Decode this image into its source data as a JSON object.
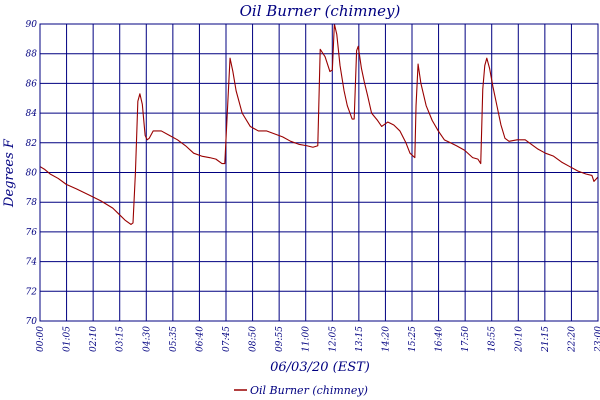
{
  "chart_data": {
    "type": "line",
    "title": "Oil Burner (chimney)",
    "xlabel": "06/03/20 (EST)",
    "ylabel": "Degrees F",
    "ylim": [
      70,
      90
    ],
    "y_ticks": [
      "70",
      "72",
      "74",
      "76",
      "78",
      "80",
      "82",
      "84",
      "86",
      "88",
      "90"
    ],
    "xlim": [
      "00:00",
      "23:00"
    ],
    "x_ticks": [
      "00:00",
      "01:05",
      "02:10",
      "03:15",
      "04:30",
      "05:35",
      "06:40",
      "07:45",
      "08:50",
      "09:55",
      "11:00",
      "12:05",
      "13:15",
      "14:20",
      "15:25",
      "16:40",
      "17:50",
      "18:55",
      "20:10",
      "21:15",
      "22:20",
      "23:00"
    ],
    "grid": true,
    "legend": "bottom-center",
    "colors": {
      "series": "#990000",
      "grid": "#000080",
      "text": "#000080"
    },
    "series": [
      {
        "name": "Oil Burner (chimney)",
        "points": [
          [
            "00:00",
            80.4
          ],
          [
            "00:12",
            80.2
          ],
          [
            "00:25",
            79.9
          ],
          [
            "00:45",
            79.6
          ],
          [
            "01:05",
            79.2
          ],
          [
            "01:30",
            78.9
          ],
          [
            "02:00",
            78.5
          ],
          [
            "02:30",
            78.1
          ],
          [
            "03:00",
            77.6
          ],
          [
            "03:15",
            77.2
          ],
          [
            "03:30",
            76.8
          ],
          [
            "03:45",
            76.5
          ],
          [
            "03:50",
            76.6
          ],
          [
            "03:56",
            80.0
          ],
          [
            "04:02",
            84.8
          ],
          [
            "04:07",
            85.3
          ],
          [
            "04:13",
            84.6
          ],
          [
            "04:20",
            82.5
          ],
          [
            "04:25",
            82.2
          ],
          [
            "04:30",
            82.3
          ],
          [
            "04:40",
            82.8
          ],
          [
            "05:00",
            82.8
          ],
          [
            "05:20",
            82.5
          ],
          [
            "05:40",
            82.2
          ],
          [
            "06:00",
            81.8
          ],
          [
            "06:20",
            81.3
          ],
          [
            "06:40",
            81.1
          ],
          [
            "07:00",
            81.0
          ],
          [
            "07:15",
            80.9
          ],
          [
            "07:30",
            80.6
          ],
          [
            "07:37",
            80.6
          ],
          [
            "07:45",
            85.0
          ],
          [
            "07:50",
            87.7
          ],
          [
            "07:57",
            86.8
          ],
          [
            "08:05",
            85.5
          ],
          [
            "08:20",
            84.0
          ],
          [
            "08:40",
            83.1
          ],
          [
            "09:00",
            82.8
          ],
          [
            "09:20",
            82.8
          ],
          [
            "09:40",
            82.6
          ],
          [
            "10:00",
            82.4
          ],
          [
            "10:20",
            82.1
          ],
          [
            "10:40",
            81.9
          ],
          [
            "11:00",
            81.8
          ],
          [
            "11:15",
            81.7
          ],
          [
            "11:27",
            81.8
          ],
          [
            "11:33",
            88.3
          ],
          [
            "11:45",
            87.8
          ],
          [
            "11:57",
            86.8
          ],
          [
            "12:03",
            86.9
          ],
          [
            "12:08",
            90.0
          ],
          [
            "12:14",
            89.3
          ],
          [
            "12:22",
            87.2
          ],
          [
            "12:32",
            85.5
          ],
          [
            "12:40",
            84.5
          ],
          [
            "12:52",
            83.6
          ],
          [
            "12:57",
            83.6
          ],
          [
            "13:03",
            88.2
          ],
          [
            "13:07",
            88.5
          ],
          [
            "13:15",
            87.0
          ],
          [
            "13:22",
            86.1
          ],
          [
            "13:30",
            85.2
          ],
          [
            "13:40",
            84.0
          ],
          [
            "13:55",
            83.5
          ],
          [
            "14:05",
            83.1
          ],
          [
            "14:20",
            83.4
          ],
          [
            "14:35",
            83.2
          ],
          [
            "14:50",
            82.8
          ],
          [
            "15:05",
            82.0
          ],
          [
            "15:15",
            81.3
          ],
          [
            "15:27",
            81.0
          ],
          [
            "15:30",
            84.5
          ],
          [
            "15:35",
            87.3
          ],
          [
            "15:42",
            86.0
          ],
          [
            "15:55",
            84.5
          ],
          [
            "16:10",
            83.5
          ],
          [
            "16:25",
            82.8
          ],
          [
            "16:40",
            82.2
          ],
          [
            "16:55",
            82.0
          ],
          [
            "17:10",
            81.8
          ],
          [
            "17:30",
            81.5
          ],
          [
            "17:50",
            81.0
          ],
          [
            "18:03",
            80.9
          ],
          [
            "18:10",
            80.6
          ],
          [
            "18:15",
            85.6
          ],
          [
            "18:20",
            87.2
          ],
          [
            "18:25",
            87.7
          ],
          [
            "18:32",
            87.0
          ],
          [
            "18:40",
            85.8
          ],
          [
            "18:50",
            84.5
          ],
          [
            "19:00",
            83.2
          ],
          [
            "19:10",
            82.3
          ],
          [
            "19:20",
            82.1
          ],
          [
            "19:40",
            82.2
          ],
          [
            "20:00",
            82.2
          ],
          [
            "20:10",
            82.0
          ],
          [
            "20:30",
            81.6
          ],
          [
            "20:50",
            81.3
          ],
          [
            "21:10",
            81.1
          ],
          [
            "21:30",
            80.7
          ],
          [
            "21:50",
            80.4
          ],
          [
            "22:10",
            80.1
          ],
          [
            "22:30",
            79.9
          ],
          [
            "22:45",
            79.8
          ],
          [
            "22:50",
            79.4
          ],
          [
            "23:00",
            79.7
          ]
        ]
      }
    ]
  }
}
